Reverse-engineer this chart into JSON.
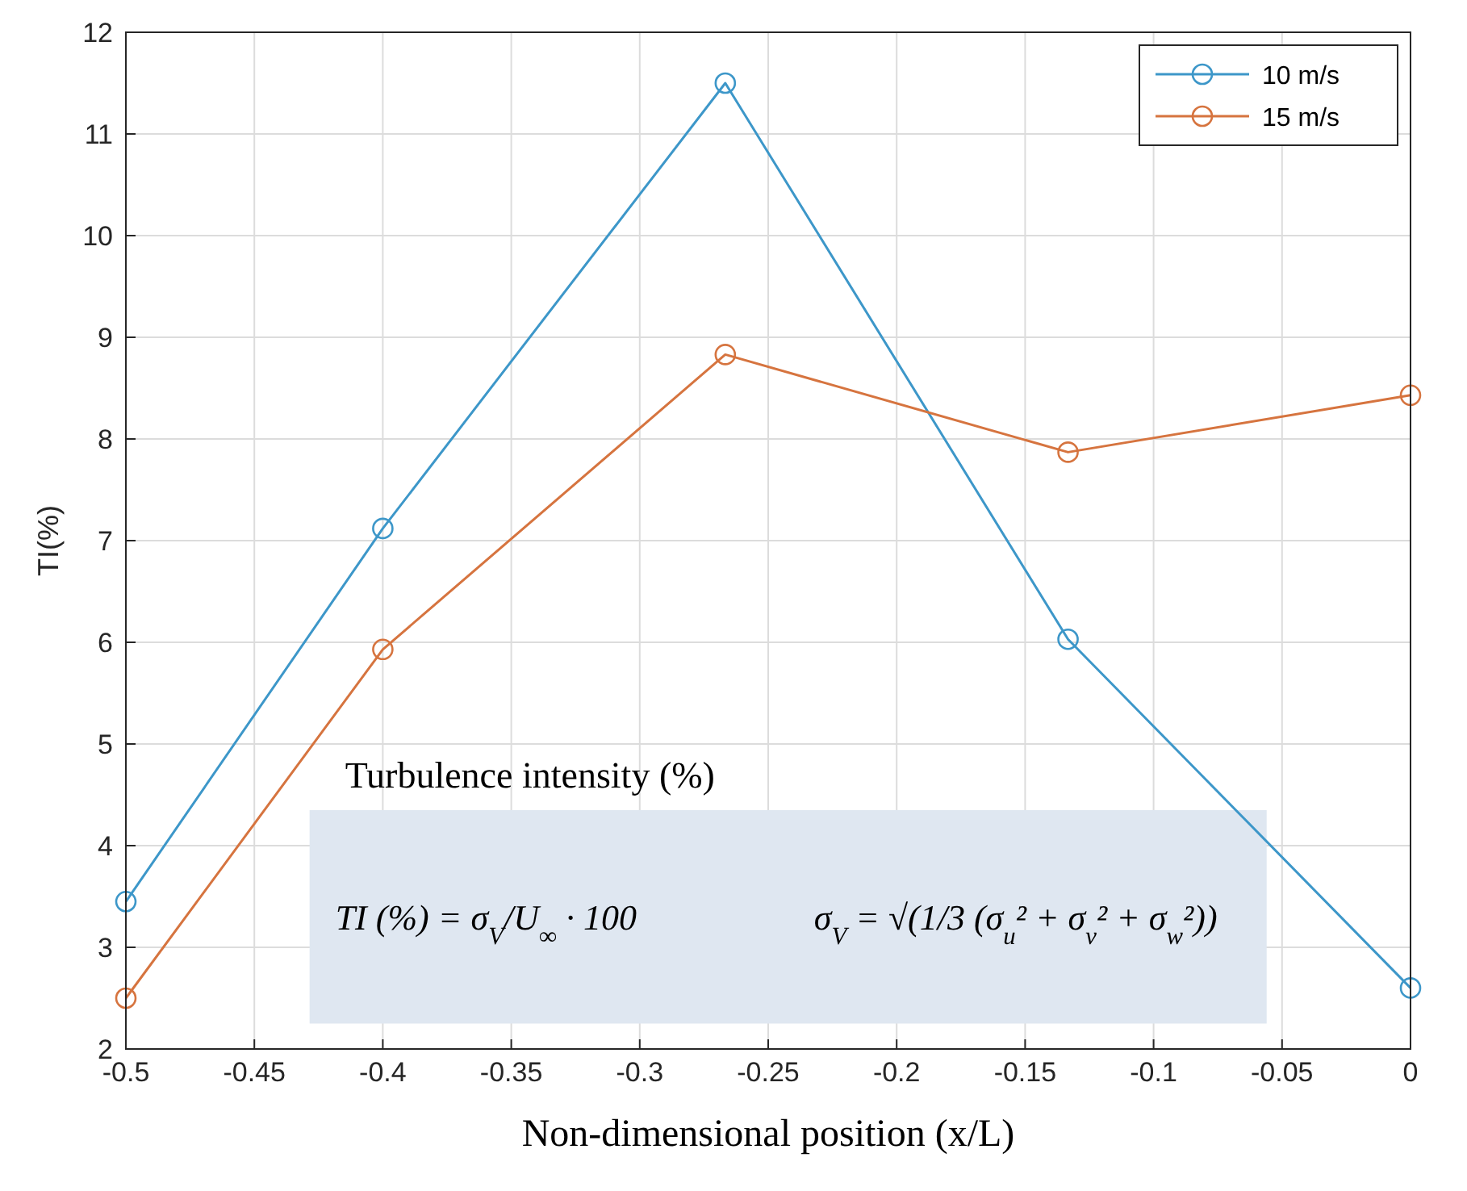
{
  "chart_data": {
    "type": "line",
    "xlabel": "Non-dimensional position (x/L)",
    "ylabel": "TI(%)",
    "x": [
      -0.5,
      -0.4,
      -0.2667,
      -0.1333,
      0
    ],
    "series": [
      {
        "name": "10 m/s",
        "color": "#3d97c9",
        "values": [
          3.45,
          7.12,
          11.5,
          6.03,
          2.6
        ]
      },
      {
        "name": "15 m/s",
        "color": "#d6743f",
        "values": [
          2.5,
          5.93,
          8.83,
          7.87,
          8.43
        ]
      }
    ],
    "xlim": [
      -0.5,
      0
    ],
    "xticks": [
      -0.5,
      -0.45,
      -0.4,
      -0.35,
      -0.3,
      -0.25,
      -0.2,
      -0.15,
      -0.1,
      -0.05,
      0
    ],
    "ylim": [
      2,
      12
    ],
    "yticks": [
      2,
      3,
      4,
      5,
      6,
      7,
      8,
      9,
      10,
      11,
      12
    ],
    "grid": true,
    "legend": "top right",
    "marker": "circle",
    "line_style": "solid",
    "annotations": [
      "Turbulence intensity (%)",
      "TI (%) = σ$_{V}$/U$_{∞}$ · 100",
      "σ$_{V}$ = √(1/3 (σ$_{u}$² + σ$_{v}$² + σ$_{w}$²))"
    ]
  }
}
